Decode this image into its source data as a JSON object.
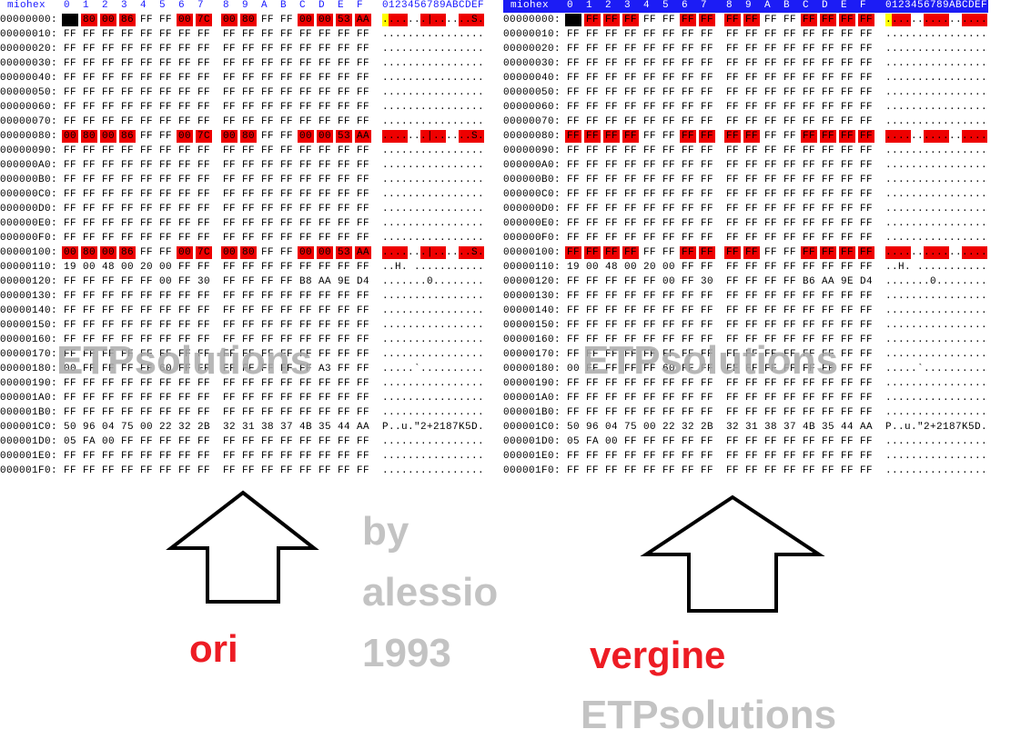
{
  "panels": [
    {
      "name": "miohex",
      "columns": "0  1  2  3  4  5  6  7   8  9  A  B  C  D  E  F",
      "ascii_header": "0123456789ABCDEF",
      "header_selected": false,
      "rows": [
        {
          "address": "00000000:",
          "bytes": "00 80 00 86 FF FF 00 7C  00 80 FF FF 00 00 53 AA",
          "ascii": ".......|......S.",
          "red": [
            1,
            2,
            3,
            6,
            7,
            8,
            9,
            12,
            13,
            14,
            15
          ],
          "cursor": 0
        },
        {
          "address": "00000010:",
          "bytes": "FF FF FF FF FF FF FF FF  FF FF FF FF FF FF FF FF",
          "ascii": "................"
        },
        {
          "address": "00000020:",
          "bytes": "FF FF FF FF FF FF FF FF  FF FF FF FF FF FF FF FF",
          "ascii": "................"
        },
        {
          "address": "00000030:",
          "bytes": "FF FF FF FF FF FF FF FF  FF FF FF FF FF FF FF FF",
          "ascii": "................"
        },
        {
          "address": "00000040:",
          "bytes": "FF FF FF FF FF FF FF FF  FF FF FF FF FF FF FF FF",
          "ascii": "................"
        },
        {
          "address": "00000050:",
          "bytes": "FF FF FF FF FF FF FF FF  FF FF FF FF FF FF FF FF",
          "ascii": "................"
        },
        {
          "address": "00000060:",
          "bytes": "FF FF FF FF FF FF FF FF  FF FF FF FF FF FF FF FF",
          "ascii": "................"
        },
        {
          "address": "00000070:",
          "bytes": "FF FF FF FF FF FF FF FF  FF FF FF FF FF FF FF FF",
          "ascii": "................"
        },
        {
          "address": "00000080:",
          "bytes": "00 80 00 86 FF FF 00 7C  00 80 FF FF 00 00 53 AA",
          "ascii": ".......|......S.",
          "red": [
            0,
            1,
            2,
            3,
            6,
            7,
            8,
            9,
            12,
            13,
            14,
            15
          ]
        },
        {
          "address": "00000090:",
          "bytes": "FF FF FF FF FF FF FF FF  FF FF FF FF FF FF FF FF",
          "ascii": "................"
        },
        {
          "address": "000000A0:",
          "bytes": "FF FF FF FF FF FF FF FF  FF FF FF FF FF FF FF FF",
          "ascii": "................"
        },
        {
          "address": "000000B0:",
          "bytes": "FF FF FF FF FF FF FF FF  FF FF FF FF FF FF FF FF",
          "ascii": "................"
        },
        {
          "address": "000000C0:",
          "bytes": "FF FF FF FF FF FF FF FF  FF FF FF FF FF FF FF FF",
          "ascii": "................"
        },
        {
          "address": "000000D0:",
          "bytes": "FF FF FF FF FF FF FF FF  FF FF FF FF FF FF FF FF",
          "ascii": "................"
        },
        {
          "address": "000000E0:",
          "bytes": "FF FF FF FF FF FF FF FF  FF FF FF FF FF FF FF FF",
          "ascii": "................"
        },
        {
          "address": "000000F0:",
          "bytes": "FF FF FF FF FF FF FF FF  FF FF FF FF FF FF FF FF",
          "ascii": "................"
        },
        {
          "address": "00000100:",
          "bytes": "00 80 00 86 FF FF 00 7C  00 80 FF FF 00 00 53 AA",
          "ascii": ".......|......S.",
          "red": [
            0,
            1,
            2,
            3,
            6,
            7,
            8,
            9,
            12,
            13,
            14,
            15
          ]
        },
        {
          "address": "00000110:",
          "bytes": "19 00 48 00 20 00 FF FF  FF FF FF FF FF FF FF FF",
          "ascii": "..H. ..........."
        },
        {
          "address": "00000120:",
          "bytes": "FF FF FF FF FF 00 FF 30  FF FF FF FF B8 AA 9E D4",
          "ascii": ".......0........"
        },
        {
          "address": "00000130:",
          "bytes": "FF FF FF FF FF FF FF FF  FF FF FF FF FF FF FF FF",
          "ascii": "................"
        },
        {
          "address": "00000140:",
          "bytes": "FF FF FF FF FF FF FF FF  FF FF FF FF FF FF FF FF",
          "ascii": "................"
        },
        {
          "address": "00000150:",
          "bytes": "FF FF FF FF FF FF FF FF  FF FF FF FF FF FF FF FF",
          "ascii": "................"
        },
        {
          "address": "00000160:",
          "bytes": "FF FF FF FF FF FF FF FF  FF FF FF FF FF FF FF FF",
          "ascii": "................"
        },
        {
          "address": "00000170:",
          "bytes": "FF FF FF FF FF FF FF FF  FF FF FF FF FF FF FF FF",
          "ascii": "................"
        },
        {
          "address": "00000180:",
          "bytes": "00 FF FF FF FF 60 FF FF  FF FF FF FF FF A3 FF FF",
          "ascii": ".....`.........."
        },
        {
          "address": "00000190:",
          "bytes": "FF FF FF FF FF FF FF FF  FF FF FF FF FF FF FF FF",
          "ascii": "................"
        },
        {
          "address": "000001A0:",
          "bytes": "FF FF FF FF FF FF FF FF  FF FF FF FF FF FF FF FF",
          "ascii": "................"
        },
        {
          "address": "000001B0:",
          "bytes": "FF FF FF FF FF FF FF FF  FF FF FF FF FF FF FF FF",
          "ascii": "................"
        },
        {
          "address": "000001C0:",
          "bytes": "50 96 04 75 00 22 32 2B  32 31 38 37 4B 35 44 AA",
          "ascii": "P..u.\"2+2187K5D."
        },
        {
          "address": "000001D0:",
          "bytes": "05 FA 00 FF FF FF FF FF  FF FF FF FF FF FF FF FF",
          "ascii": "................"
        },
        {
          "address": "000001E0:",
          "bytes": "FF FF FF FF FF FF FF FF  FF FF FF FF FF FF FF FF",
          "ascii": "................"
        },
        {
          "address": "000001F0:",
          "bytes": "FF FF FF FF FF FF FF FF  FF FF FF FF FF FF FF FF",
          "ascii": "................"
        }
      ]
    },
    {
      "name": "miohex",
      "columns": "0  1  2  3  4  5  6  7   8  9  A  B  C  D  E  F",
      "ascii_header": "0123456789ABCDEF",
      "header_selected": true,
      "rows": [
        {
          "address": "00000000:",
          "bytes": "FF FF FF FF FF FF FF FF  FF FF FF FF FF FF FF FF",
          "ascii": "................",
          "red": [
            1,
            2,
            3,
            6,
            7,
            8,
            9,
            12,
            13,
            14,
            15
          ],
          "cursor": 0
        },
        {
          "address": "00000010:",
          "bytes": "FF FF FF FF FF FF FF FF  FF FF FF FF FF FF FF FF",
          "ascii": "................"
        },
        {
          "address": "00000020:",
          "bytes": "FF FF FF FF FF FF FF FF  FF FF FF FF FF FF FF FF",
          "ascii": "................"
        },
        {
          "address": "00000030:",
          "bytes": "FF FF FF FF FF FF FF FF  FF FF FF FF FF FF FF FF",
          "ascii": "................"
        },
        {
          "address": "00000040:",
          "bytes": "FF FF FF FF FF FF FF FF  FF FF FF FF FF FF FF FF",
          "ascii": "................"
        },
        {
          "address": "00000050:",
          "bytes": "FF FF FF FF FF FF FF FF  FF FF FF FF FF FF FF FF",
          "ascii": "................"
        },
        {
          "address": "00000060:",
          "bytes": "FF FF FF FF FF FF FF FF  FF FF FF FF FF FF FF FF",
          "ascii": "................"
        },
        {
          "address": "00000070:",
          "bytes": "FF FF FF FF FF FF FF FF  FF FF FF FF FF FF FF FF",
          "ascii": "................"
        },
        {
          "address": "00000080:",
          "bytes": "FF FF FF FF FF FF FF FF  FF FF FF FF FF FF FF FF",
          "ascii": "................",
          "red": [
            0,
            1,
            2,
            3,
            6,
            7,
            8,
            9,
            12,
            13,
            14,
            15
          ]
        },
        {
          "address": "00000090:",
          "bytes": "FF FF FF FF FF FF FF FF  FF FF FF FF FF FF FF FF",
          "ascii": "................"
        },
        {
          "address": "000000A0:",
          "bytes": "FF FF FF FF FF FF FF FF  FF FF FF FF FF FF FF FF",
          "ascii": "................"
        },
        {
          "address": "000000B0:",
          "bytes": "FF FF FF FF FF FF FF FF  FF FF FF FF FF FF FF FF",
          "ascii": "................"
        },
        {
          "address": "000000C0:",
          "bytes": "FF FF FF FF FF FF FF FF  FF FF FF FF FF FF FF FF",
          "ascii": "................"
        },
        {
          "address": "000000D0:",
          "bytes": "FF FF FF FF FF FF FF FF  FF FF FF FF FF FF FF FF",
          "ascii": "................"
        },
        {
          "address": "000000E0:",
          "bytes": "FF FF FF FF FF FF FF FF  FF FF FF FF FF FF FF FF",
          "ascii": "................"
        },
        {
          "address": "000000F0:",
          "bytes": "FF FF FF FF FF FF FF FF  FF FF FF FF FF FF FF FF",
          "ascii": "................"
        },
        {
          "address": "00000100:",
          "bytes": "FF FF FF FF FF FF FF FF  FF FF FF FF FF FF FF FF",
          "ascii": "................",
          "red": [
            0,
            1,
            2,
            3,
            6,
            7,
            8,
            9,
            12,
            13,
            14,
            15
          ]
        },
        {
          "address": "00000110:",
          "bytes": "19 00 48 00 20 00 FF FF  FF FF FF FF FF FF FF FF",
          "ascii": "..H. ..........."
        },
        {
          "address": "00000120:",
          "bytes": "FF FF FF FF FF 00 FF 30  FF FF FF FF B6 AA 9E D4",
          "ascii": ".......0........"
        },
        {
          "address": "00000130:",
          "bytes": "FF FF FF FF FF FF FF FF  FF FF FF FF FF FF FF FF",
          "ascii": "................"
        },
        {
          "address": "00000140:",
          "bytes": "FF FF FF FF FF FF FF FF  FF FF FF FF FF FF FF FF",
          "ascii": "................"
        },
        {
          "address": "00000150:",
          "bytes": "FF FF FF FF FF FF FF FF  FF FF FF FF FF FF FF FF",
          "ascii": "................"
        },
        {
          "address": "00000160:",
          "bytes": "FF FF FF FF FF FF FF FF  FF FF FF FF FF FF FF FF",
          "ascii": "................"
        },
        {
          "address": "00000170:",
          "bytes": "FF FF FF FF FF FF FF FF  FF FF FF FF FF FF FF FF",
          "ascii": "................"
        },
        {
          "address": "00000180:",
          "bytes": "00 FF FF FF FF 60 FF FF  FF FF FF FF FF FF FF FF",
          "ascii": ".....`.........."
        },
        {
          "address": "00000190:",
          "bytes": "FF FF FF FF FF FF FF FF  FF FF FF FF FF FF FF FF",
          "ascii": "................"
        },
        {
          "address": "000001A0:",
          "bytes": "FF FF FF FF FF FF FF FF  FF FF FF FF FF FF FF FF",
          "ascii": "................"
        },
        {
          "address": "000001B0:",
          "bytes": "FF FF FF FF FF FF FF FF  FF FF FF FF FF FF FF FF",
          "ascii": "................"
        },
        {
          "address": "000001C0:",
          "bytes": "50 96 04 75 00 22 32 2B  32 31 38 37 4B 35 44 AA",
          "ascii": "P..u.\"2+2187K5D."
        },
        {
          "address": "000001D0:",
          "bytes": "05 FA 00 FF FF FF FF FF  FF FF FF FF FF FF FF FF",
          "ascii": "................"
        },
        {
          "address": "000001E0:",
          "bytes": "FF FF FF FF FF FF FF FF  FF FF FF FF FF FF FF FF",
          "ascii": "................"
        },
        {
          "address": "000001F0:",
          "bytes": "FF FF FF FF FF FF FF FF  FF FF FF FF FF FF FF FF",
          "ascii": "................"
        }
      ]
    }
  ],
  "annotations": {
    "watermark_left": "ETPsolutions",
    "watermark_right": "ETPsolutions",
    "label_left": "ori",
    "label_right": "vergine",
    "credit": [
      "by",
      "alessio",
      "1993"
    ],
    "signature": "ETPsolutions"
  }
}
